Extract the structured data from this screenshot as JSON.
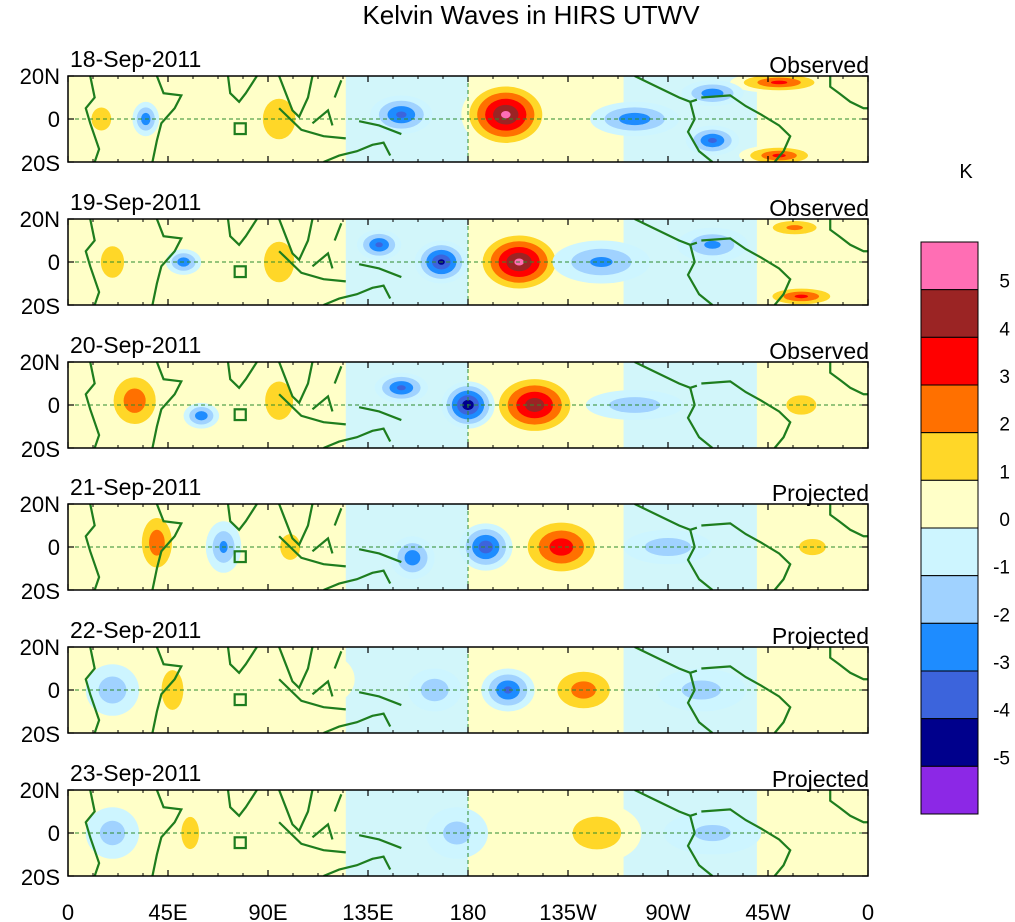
{
  "chart_data": {
    "type": "heatmap",
    "title": "Kelvin Waves in HIRS UTWV",
    "colorbar": {
      "unit_label": "K",
      "levels": [
        5,
        4,
        3,
        2,
        1,
        0,
        -1,
        -2,
        -3,
        -4,
        -5
      ],
      "colors": [
        "#ff6eb4",
        "#9b2424",
        "#ff0000",
        "#ff7000",
        "#ffd728",
        "#ffffc8",
        "#cdf5ff",
        "#a0d2ff",
        "#1e8cff",
        "#3c64dc",
        "#00008c",
        "#8c28e6"
      ]
    },
    "x_ticks": [
      "0",
      "45E",
      "90E",
      "135E",
      "180",
      "135W",
      "90W",
      "45W",
      "0"
    ],
    "y_ticks": [
      "20N",
      "0",
      "20S"
    ],
    "lat_range": [
      -20,
      20
    ],
    "lon_range": [
      0,
      360
    ],
    "panels": [
      {
        "date": "18-Sep-2011",
        "status": "Observed",
        "anomalies": [
          {
            "lon": 197,
            "lat": 2,
            "rx": 20,
            "ry": 16,
            "value": 5
          },
          {
            "lon": 320,
            "lat": 17,
            "rx": 22,
            "ry": 5,
            "value": 3
          },
          {
            "lon": 320,
            "lat": -17,
            "rx": 18,
            "ry": 5,
            "value": 3
          },
          {
            "lon": 95,
            "lat": 0,
            "rx": 14,
            "ry": 18,
            "value": 1.5
          },
          {
            "lon": 15,
            "lat": 0,
            "rx": 10,
            "ry": 12,
            "value": 1.2
          },
          {
            "lon": 150,
            "lat": 2,
            "rx": 14,
            "ry": 9,
            "value": -3
          },
          {
            "lon": 255,
            "lat": 0,
            "rx": 20,
            "ry": 8,
            "value": -2.5
          },
          {
            "lon": 290,
            "lat": -10,
            "rx": 12,
            "ry": 7,
            "value": -3
          },
          {
            "lon": 290,
            "lat": 12,
            "rx": 14,
            "ry": 6,
            "value": -2.5
          },
          {
            "lon": 35,
            "lat": 0,
            "rx": 6,
            "ry": 8,
            "value": -2.5
          }
        ]
      },
      {
        "date": "19-Sep-2011",
        "status": "Observed",
        "anomalies": [
          {
            "lon": 203,
            "lat": 0,
            "rx": 20,
            "ry": 15,
            "value": 5
          },
          {
            "lon": 330,
            "lat": -16,
            "rx": 18,
            "ry": 5,
            "value": 3
          },
          {
            "lon": 327,
            "lat": 16,
            "rx": 16,
            "ry": 5,
            "value": 2
          },
          {
            "lon": 95,
            "lat": 0,
            "rx": 13,
            "ry": 18,
            "value": 1.5
          },
          {
            "lon": 20,
            "lat": 0,
            "rx": 10,
            "ry": 14,
            "value": 1.5
          },
          {
            "lon": 168,
            "lat": 0,
            "rx": 12,
            "ry": 10,
            "value": -4
          },
          {
            "lon": 140,
            "lat": 8,
            "rx": 10,
            "ry": 7,
            "value": -3
          },
          {
            "lon": 240,
            "lat": 0,
            "rx": 22,
            "ry": 10,
            "value": -2
          },
          {
            "lon": 290,
            "lat": 8,
            "rx": 16,
            "ry": 8,
            "value": -2
          },
          {
            "lon": 52,
            "lat": 0,
            "rx": 8,
            "ry": 6,
            "value": -2.5
          }
        ]
      },
      {
        "date": "20-Sep-2011",
        "status": "Observed",
        "anomalies": [
          {
            "lon": 210,
            "lat": 0,
            "rx": 20,
            "ry": 15,
            "value": 4.5
          },
          {
            "lon": 30,
            "lat": 2,
            "rx": 14,
            "ry": 16,
            "value": 2.5
          },
          {
            "lon": 95,
            "lat": 2,
            "rx": 12,
            "ry": 17,
            "value": 1.5
          },
          {
            "lon": 330,
            "lat": 0,
            "rx": 18,
            "ry": 12,
            "value": 1
          },
          {
            "lon": 180,
            "lat": 0,
            "rx": 12,
            "ry": 11,
            "value": -4.5
          },
          {
            "lon": 150,
            "lat": 8,
            "rx": 12,
            "ry": 7,
            "value": -3
          },
          {
            "lon": 255,
            "lat": 0,
            "rx": 22,
            "ry": 7,
            "value": -1.5
          },
          {
            "lon": 60,
            "lat": -5,
            "rx": 8,
            "ry": 6,
            "value": -2.5
          }
        ]
      },
      {
        "date": "21-Sep-2011",
        "status": "Projected",
        "anomalies": [
          {
            "lon": 222,
            "lat": 0,
            "rx": 20,
            "ry": 15,
            "value": 3.5
          },
          {
            "lon": 40,
            "lat": 2,
            "rx": 10,
            "ry": 17,
            "value": 2.5
          },
          {
            "lon": 100,
            "lat": 0,
            "rx": 12,
            "ry": 16,
            "value": 1
          },
          {
            "lon": 335,
            "lat": 0,
            "rx": 16,
            "ry": 10,
            "value": 1
          },
          {
            "lon": 188,
            "lat": 0,
            "rx": 12,
            "ry": 11,
            "value": -3.5
          },
          {
            "lon": 155,
            "lat": -5,
            "rx": 10,
            "ry": 10,
            "value": -2.5
          },
          {
            "lon": 270,
            "lat": 0,
            "rx": 20,
            "ry": 8,
            "value": -1.5
          },
          {
            "lon": 70,
            "lat": 0,
            "rx": 8,
            "ry": 12,
            "value": -2
          }
        ]
      },
      {
        "date": "22-Sep-2011",
        "status": "Projected",
        "anomalies": [
          {
            "lon": 232,
            "lat": 0,
            "rx": 18,
            "ry": 13,
            "value": 2.3
          },
          {
            "lon": 47,
            "lat": 0,
            "rx": 9,
            "ry": 17,
            "value": 1.6
          },
          {
            "lon": 115,
            "lat": 5,
            "rx": 14,
            "ry": 12,
            "value": 0.8
          },
          {
            "lon": 340,
            "lat": 0,
            "rx": 16,
            "ry": 10,
            "value": 0.8
          },
          {
            "lon": 198,
            "lat": 0,
            "rx": 12,
            "ry": 10,
            "value": -3
          },
          {
            "lon": 165,
            "lat": 0,
            "rx": 12,
            "ry": 10,
            "value": -1.5
          },
          {
            "lon": 20,
            "lat": 0,
            "rx": 12,
            "ry": 12,
            "value": -1.5
          },
          {
            "lon": 285,
            "lat": 0,
            "rx": 20,
            "ry": 10,
            "value": -1.2
          }
        ]
      },
      {
        "date": "23-Sep-2011",
        "status": "Projected",
        "anomalies": [
          {
            "lon": 238,
            "lat": 0,
            "rx": 20,
            "ry": 14,
            "value": 1.6
          },
          {
            "lon": 55,
            "lat": 0,
            "rx": 8,
            "ry": 15,
            "value": 1.4
          },
          {
            "lon": 100,
            "lat": 0,
            "rx": 14,
            "ry": 15,
            "value": 0.7
          },
          {
            "lon": 345,
            "lat": 0,
            "rx": 14,
            "ry": 10,
            "value": 0.6
          },
          {
            "lon": 175,
            "lat": 0,
            "rx": 14,
            "ry": 12,
            "value": -1.2
          },
          {
            "lon": 20,
            "lat": 0,
            "rx": 12,
            "ry": 12,
            "value": -1.3
          },
          {
            "lon": 290,
            "lat": 0,
            "rx": 22,
            "ry": 10,
            "value": -1
          }
        ]
      }
    ]
  }
}
